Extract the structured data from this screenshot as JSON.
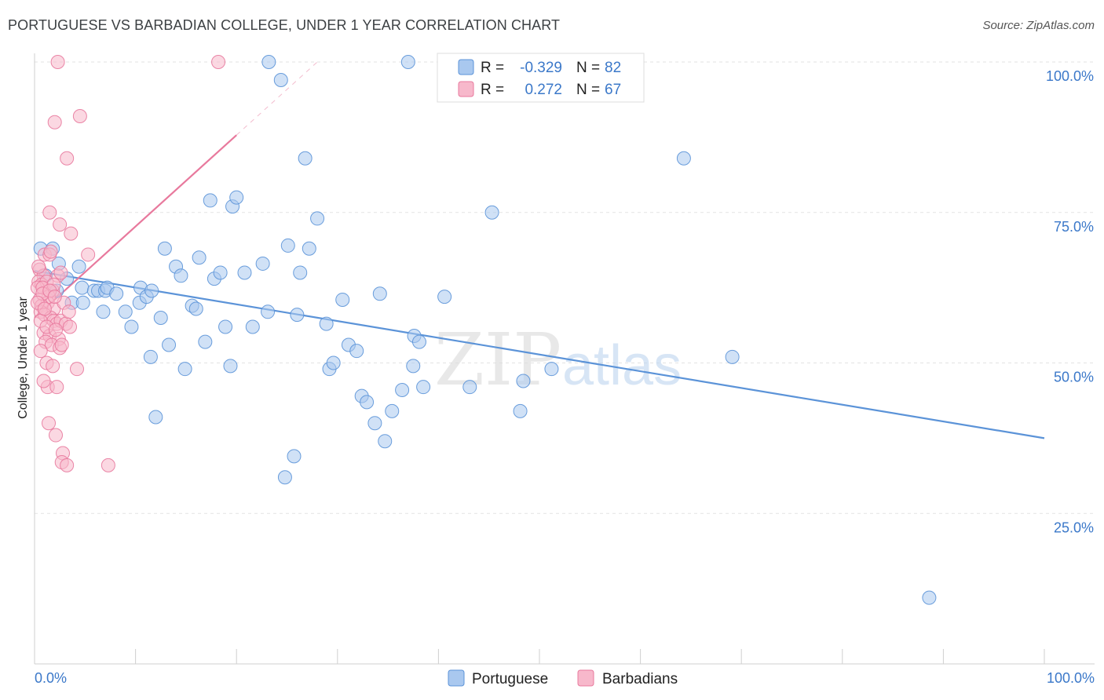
{
  "header": {
    "title": "PORTUGUESE VS BARBADIAN COLLEGE, UNDER 1 YEAR CORRELATION CHART",
    "source": "Source: ZipAtlas.com"
  },
  "watermark": {
    "zip": "ZIP",
    "atlas": "atlas"
  },
  "legend_stats": [
    {
      "r_label": "R =",
      "r_value": "-0.329",
      "n_label": "N =",
      "n_value": "82",
      "color": "#a9c8ef"
    },
    {
      "r_label": "R =",
      "r_value": "0.272",
      "n_label": "N =",
      "n_value": "67",
      "color": "#f7b8cb"
    }
  ],
  "bottom_legend": [
    {
      "label": "Portuguese",
      "color": "#a9c8ef"
    },
    {
      "label": "Barbadians",
      "color": "#f7b8cb"
    }
  ],
  "chart_data": {
    "type": "scatter",
    "title": "PORTUGUESE VS BARBADIAN COLLEGE, UNDER 1 YEAR CORRELATION CHART",
    "xlabel": "",
    "ylabel": "College, Under 1 year",
    "xlim": [
      0,
      100
    ],
    "ylim": [
      0,
      100
    ],
    "x_tick_labels": [
      "0.0%",
      "100.0%"
    ],
    "y_ticks": [
      {
        "value": 25,
        "label": "25.0%"
      },
      {
        "value": 50,
        "label": "50.0%"
      },
      {
        "value": 75,
        "label": "75.0%"
      },
      {
        "value": 100,
        "label": "100.0%"
      }
    ],
    "grid": true,
    "series": [
      {
        "name": "Portuguese",
        "color": "#5b93d8",
        "fill": "#a9c8ef",
        "points": [
          [
            0.6,
            69
          ],
          [
            1.8,
            69
          ],
          [
            2.4,
            66.5
          ],
          [
            1.1,
            64.5
          ],
          [
            3.2,
            64
          ],
          [
            2.2,
            62
          ],
          [
            4.4,
            66
          ],
          [
            3.7,
            60
          ],
          [
            4.8,
            60
          ],
          [
            4.7,
            62.5
          ],
          [
            5.9,
            62
          ],
          [
            6.3,
            62
          ],
          [
            7.0,
            62
          ],
          [
            7.2,
            62.5
          ],
          [
            8.1,
            61.5
          ],
          [
            6.8,
            58.5
          ],
          [
            9.0,
            58.5
          ],
          [
            9.6,
            56
          ],
          [
            10.4,
            60
          ],
          [
            10.5,
            62.5
          ],
          [
            11.1,
            61
          ],
          [
            11.6,
            62
          ],
          [
            12.5,
            57.5
          ],
          [
            12.9,
            69
          ],
          [
            13.3,
            53
          ],
          [
            14.0,
            66
          ],
          [
            14.5,
            64.5
          ],
          [
            14.9,
            49
          ],
          [
            15.6,
            59.5
          ],
          [
            16.0,
            59
          ],
          [
            16.3,
            67.5
          ],
          [
            16.9,
            53.5
          ],
          [
            17.4,
            77
          ],
          [
            17.8,
            64
          ],
          [
            18.4,
            65
          ],
          [
            18.9,
            56
          ],
          [
            19.4,
            49.5
          ],
          [
            19.6,
            76
          ],
          [
            20.0,
            77.5
          ],
          [
            20.8,
            65
          ],
          [
            21.6,
            56
          ],
          [
            22.6,
            66.5
          ],
          [
            23.1,
            58.5
          ],
          [
            23.2,
            100
          ],
          [
            24.4,
            97
          ],
          [
            24.8,
            31
          ],
          [
            25.1,
            69.5
          ],
          [
            25.7,
            34.5
          ],
          [
            26.3,
            65
          ],
          [
            26.8,
            84
          ],
          [
            27.2,
            69
          ],
          [
            28.0,
            74
          ],
          [
            28.9,
            56.5
          ],
          [
            29.2,
            49
          ],
          [
            29.6,
            50
          ],
          [
            30.5,
            60.5
          ],
          [
            31.1,
            53
          ],
          [
            31.9,
            52
          ],
          [
            32.4,
            44.5
          ],
          [
            32.9,
            43.5
          ],
          [
            33.7,
            40
          ],
          [
            34.2,
            61.5
          ],
          [
            34.7,
            37
          ],
          [
            35.4,
            42
          ],
          [
            36.4,
            45.5
          ],
          [
            37.0,
            100
          ],
          [
            37.5,
            49.5
          ],
          [
            37.6,
            54.5
          ],
          [
            38.1,
            53.5
          ],
          [
            38.5,
            46
          ],
          [
            40.6,
            61
          ],
          [
            43.1,
            46
          ],
          [
            45.3,
            75
          ],
          [
            48.1,
            42
          ],
          [
            48.4,
            47
          ],
          [
            51.2,
            49
          ],
          [
            64.3,
            84
          ],
          [
            69.1,
            51
          ],
          [
            88.6,
            11
          ],
          [
            12.0,
            41
          ],
          [
            11.5,
            51
          ],
          [
            26.0,
            58
          ]
        ],
        "trend": {
          "x": [
            0,
            100
          ],
          "y": [
            65.3,
            37.5
          ],
          "solid": [
            0,
            100
          ]
        }
      },
      {
        "name": "Barbadians",
        "color": "#e8799d",
        "fill": "#f7b8cb",
        "points": [
          [
            2.3,
            100
          ],
          [
            18.2,
            100
          ],
          [
            2.0,
            90
          ],
          [
            4.5,
            91
          ],
          [
            3.2,
            84
          ],
          [
            1.5,
            75
          ],
          [
            2.5,
            73
          ],
          [
            3.6,
            71.5
          ],
          [
            1.0,
            68
          ],
          [
            1.5,
            68
          ],
          [
            5.3,
            68
          ],
          [
            0.5,
            65.5
          ],
          [
            0.9,
            64.5
          ],
          [
            0.4,
            63.5
          ],
          [
            0.7,
            63
          ],
          [
            1.2,
            63.5
          ],
          [
            0.3,
            62.5
          ],
          [
            0.8,
            62.5
          ],
          [
            1.8,
            62
          ],
          [
            1.4,
            61
          ],
          [
            0.5,
            60.5
          ],
          [
            1.3,
            60
          ],
          [
            0.7,
            59.5
          ],
          [
            1.9,
            59
          ],
          [
            0.6,
            58.5
          ],
          [
            1.0,
            58
          ],
          [
            1.6,
            57.5
          ],
          [
            1.9,
            57
          ],
          [
            2.2,
            56.5
          ],
          [
            2.6,
            57
          ],
          [
            3.1,
            56.5
          ],
          [
            0.9,
            55
          ],
          [
            1.5,
            54.5
          ],
          [
            2.4,
            54
          ],
          [
            1.1,
            53.5
          ],
          [
            1.7,
            53
          ],
          [
            2.5,
            52.5
          ],
          [
            0.6,
            52
          ],
          [
            1.2,
            50
          ],
          [
            1.8,
            49.5
          ],
          [
            4.2,
            49
          ],
          [
            1.3,
            46
          ],
          [
            2.2,
            46
          ],
          [
            1.4,
            40
          ],
          [
            2.1,
            38
          ],
          [
            2.8,
            35
          ],
          [
            2.7,
            33.5
          ],
          [
            3.2,
            33
          ],
          [
            7.3,
            33
          ],
          [
            0.4,
            66
          ],
          [
            1.6,
            68.5
          ],
          [
            2.3,
            64.5
          ],
          [
            0.8,
            61.5
          ],
          [
            1.9,
            63
          ],
          [
            2.9,
            60
          ],
          [
            3.4,
            58.5
          ],
          [
            0.6,
            57
          ],
          [
            1.2,
            56
          ],
          [
            2.1,
            55.5
          ],
          [
            2.7,
            53
          ],
          [
            0.9,
            47
          ],
          [
            1.5,
            62
          ],
          [
            0.3,
            60
          ],
          [
            2.0,
            61
          ],
          [
            1.0,
            59
          ],
          [
            3.5,
            56
          ],
          [
            2.6,
            65
          ]
        ],
        "trend": {
          "x": [
            0,
            28
          ],
          "y": [
            57.5,
            100
          ],
          "solid": [
            0,
            20
          ]
        }
      }
    ]
  }
}
